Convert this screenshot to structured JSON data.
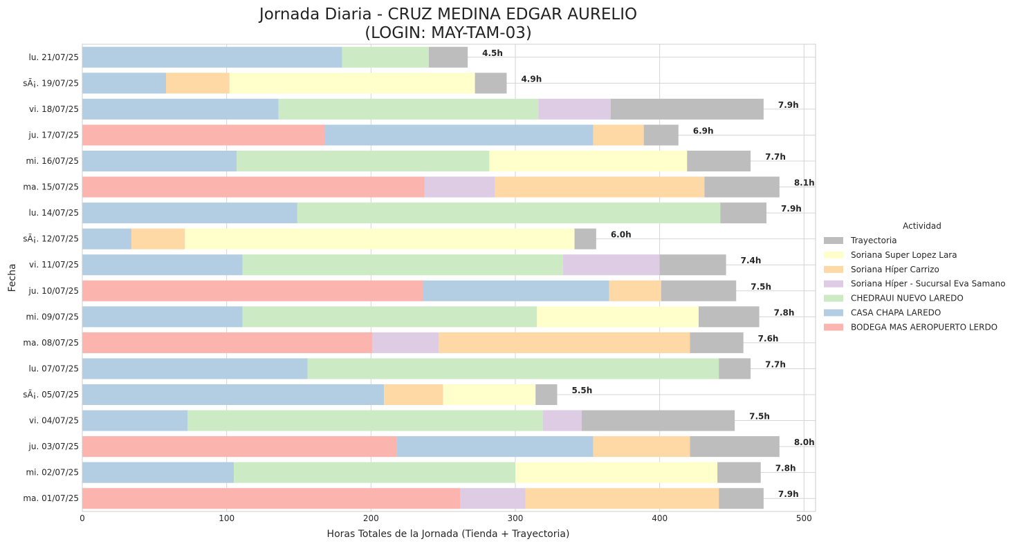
{
  "chart_data": {
    "type": "bar",
    "orientation": "horizontal",
    "stacked": true,
    "title": "Jornada Diaria - CRUZ MEDINA EDGAR AURELIO",
    "subtitle": "(LOGIN: MAY-TAM-03)",
    "xlabel": "Horas Totales de la Jornada (Tienda + Trayectoria)",
    "ylabel": "Fecha",
    "xlim": [
      0,
      508
    ],
    "xticks": [
      0,
      100,
      200,
      300,
      400,
      500
    ],
    "grid": true,
    "legend_title": "Actividad",
    "legend_position": "center-right",
    "categories": [
      "lu. 21/07/25",
      "sÃ¡. 19/07/25",
      "vi. 18/07/25",
      "ju. 17/07/25",
      "mi. 16/07/25",
      "ma. 15/07/25",
      "lu. 14/07/25",
      "sÃ¡. 12/07/25",
      "vi. 11/07/25",
      "ju. 10/07/25",
      "mi. 09/07/25",
      "ma. 08/07/25",
      "lu. 07/07/25",
      "sÃ¡. 05/07/25",
      "vi. 04/07/25",
      "ju. 03/07/25",
      "mi. 02/07/25",
      "ma. 01/07/25"
    ],
    "totals_labels": [
      "4.5h",
      "4.9h",
      "7.9h",
      "6.9h",
      "7.7h",
      "8.1h",
      "7.9h",
      "6.0h",
      "7.4h",
      "7.5h",
      "7.8h",
      "7.6h",
      "7.7h",
      "5.5h",
      "7.5h",
      "8.0h",
      "7.8h",
      "7.9h"
    ],
    "stack_order": [
      "BODEGA MAS AEROPUERTO LERDO",
      "CASA CHAPA LAREDO",
      "CHEDRAUI NUEVO LAREDO",
      "Soriana Híper - Sucursal Eva Samano",
      "Soriana Híper Carrizo",
      "Soriana Super Lopez Lara",
      "Trayectoria"
    ],
    "series": [
      {
        "name": "Trayectoria",
        "color": "#bdbdbd",
        "values": [
          27,
          22,
          106,
          24,
          44,
          52,
          32,
          15,
          46,
          52,
          42,
          37,
          22,
          15,
          106,
          62,
          30,
          31
        ]
      },
      {
        "name": "Soriana Super Lopez Lara",
        "color": "#ffffcc",
        "values": [
          0,
          170,
          0,
          0,
          137,
          0,
          0,
          270,
          0,
          0,
          112,
          0,
          0,
          64,
          0,
          0,
          140,
          0
        ]
      },
      {
        "name": "Soriana Híper Carrizo",
        "color": "#fed9a6",
        "values": [
          0,
          44,
          0,
          35,
          0,
          145,
          0,
          37,
          0,
          36,
          0,
          174,
          0,
          41,
          0,
          67,
          0,
          134
        ]
      },
      {
        "name": "Soriana Híper - Sucursal Eva Samano",
        "color": "#decbe4",
        "values": [
          0,
          0,
          50,
          0,
          0,
          49,
          0,
          0,
          67,
          0,
          0,
          46,
          0,
          0,
          27,
          0,
          0,
          45
        ]
      },
      {
        "name": "CHEDRAUI NUEVO LAREDO",
        "color": "#ccebc5",
        "values": [
          60,
          0,
          180,
          0,
          175,
          0,
          293,
          0,
          222,
          0,
          204,
          0,
          285,
          0,
          246,
          0,
          195,
          0
        ]
      },
      {
        "name": "CASA CHAPA LAREDO",
        "color": "#b3cde3",
        "values": [
          180,
          58,
          136,
          186,
          107,
          0,
          149,
          34,
          111,
          129,
          111,
          0,
          156,
          209,
          73,
          136,
          105,
          0
        ]
      },
      {
        "name": "BODEGA MAS AEROPUERTO LERDO",
        "color": "#fbb4ae",
        "values": [
          0,
          0,
          0,
          168,
          0,
          237,
          0,
          0,
          0,
          236,
          0,
          201,
          0,
          0,
          0,
          218,
          0,
          262
        ]
      }
    ]
  }
}
